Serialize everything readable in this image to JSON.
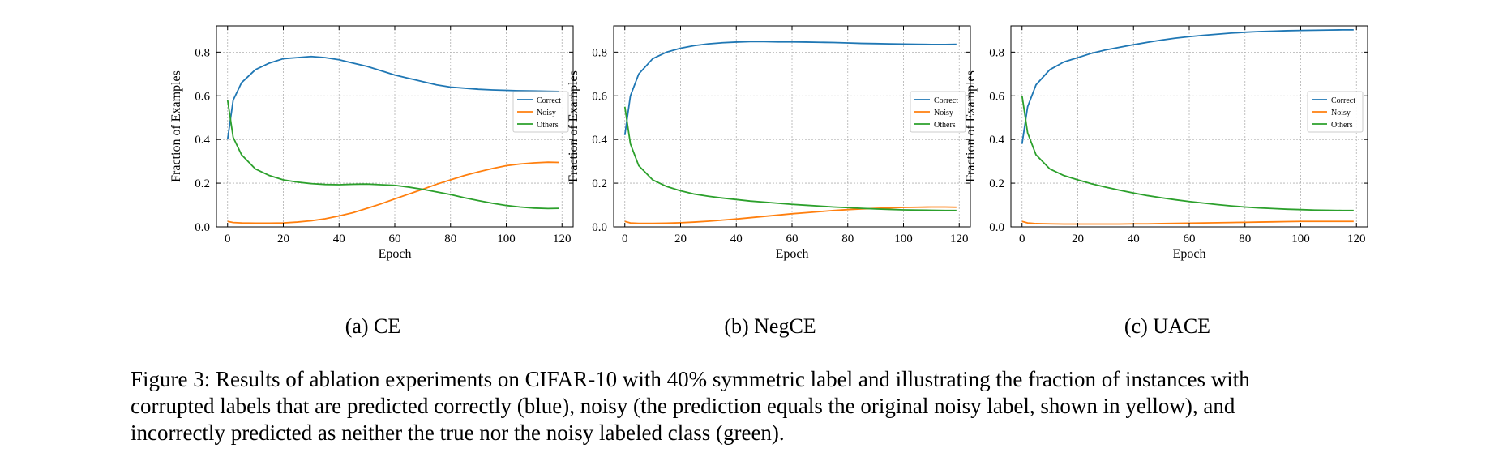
{
  "figure": {
    "caption_lines": [
      "Figure 3: Results of ablation experiments on CIFAR-10 with 40% symmetric label and illustrating the fraction of instances with",
      "corrupted labels that are predicted correctly (blue), noisy (the prediction equals the original noisy label, shown in yellow), and",
      "incorrectly predicted as neither the true nor the noisy labeled class (green)."
    ]
  },
  "chart_data": [
    {
      "type": "line",
      "subcaption": "(a) CE",
      "xlabel": "Epoch",
      "ylabel": "Fraction of Examples",
      "xlim": [
        -4,
        124
      ],
      "ylim": [
        0,
        0.92
      ],
      "xticks": [
        0,
        20,
        40,
        60,
        80,
        100,
        120
      ],
      "yticks": [
        0.0,
        0.2,
        0.4,
        0.6,
        0.8
      ],
      "grid": true,
      "legend": "center-right",
      "colors": {
        "Correct": "#1f77b4",
        "Noisy": "#ff7f0e",
        "Others": "#2ca02c"
      },
      "x": [
        0,
        2,
        5,
        10,
        15,
        20,
        25,
        30,
        35,
        40,
        45,
        50,
        55,
        60,
        65,
        70,
        75,
        80,
        85,
        90,
        95,
        100,
        105,
        110,
        115,
        119
      ],
      "series": [
        {
          "name": "Correct",
          "values": [
            0.4,
            0.58,
            0.66,
            0.72,
            0.75,
            0.77,
            0.775,
            0.78,
            0.775,
            0.765,
            0.75,
            0.735,
            0.715,
            0.695,
            0.68,
            0.665,
            0.65,
            0.64,
            0.635,
            0.63,
            0.627,
            0.625,
            0.623,
            0.622,
            0.621,
            0.62
          ]
        },
        {
          "name": "Noisy",
          "values": [
            0.025,
            0.02,
            0.018,
            0.017,
            0.017,
            0.018,
            0.022,
            0.028,
            0.037,
            0.05,
            0.065,
            0.085,
            0.105,
            0.128,
            0.15,
            0.172,
            0.195,
            0.215,
            0.235,
            0.252,
            0.267,
            0.28,
            0.288,
            0.293,
            0.296,
            0.295
          ]
        },
        {
          "name": "Others",
          "values": [
            0.58,
            0.41,
            0.33,
            0.265,
            0.235,
            0.215,
            0.205,
            0.198,
            0.194,
            0.193,
            0.195,
            0.196,
            0.193,
            0.19,
            0.182,
            0.172,
            0.16,
            0.148,
            0.133,
            0.12,
            0.108,
            0.098,
            0.091,
            0.086,
            0.084,
            0.085
          ]
        }
      ]
    },
    {
      "type": "line",
      "subcaption": "(b) NegCE",
      "xlabel": "Epoch",
      "ylabel": "Fraction of Examples",
      "xlim": [
        -4,
        124
      ],
      "ylim": [
        0,
        0.92
      ],
      "xticks": [
        0,
        20,
        40,
        60,
        80,
        100,
        120
      ],
      "yticks": [
        0.0,
        0.2,
        0.4,
        0.6,
        0.8
      ],
      "grid": true,
      "legend": "center-right",
      "colors": {
        "Correct": "#1f77b4",
        "Noisy": "#ff7f0e",
        "Others": "#2ca02c"
      },
      "x": [
        0,
        2,
        5,
        10,
        15,
        20,
        25,
        30,
        35,
        40,
        45,
        50,
        55,
        60,
        65,
        70,
        75,
        80,
        85,
        90,
        95,
        100,
        105,
        110,
        115,
        119
      ],
      "series": [
        {
          "name": "Correct",
          "values": [
            0.42,
            0.6,
            0.7,
            0.77,
            0.8,
            0.818,
            0.83,
            0.838,
            0.843,
            0.846,
            0.848,
            0.848,
            0.847,
            0.847,
            0.846,
            0.845,
            0.844,
            0.842,
            0.84,
            0.839,
            0.838,
            0.837,
            0.836,
            0.835,
            0.835,
            0.836
          ]
        },
        {
          "name": "Noisy",
          "values": [
            0.025,
            0.018,
            0.016,
            0.016,
            0.017,
            0.019,
            0.022,
            0.026,
            0.031,
            0.036,
            0.042,
            0.048,
            0.054,
            0.06,
            0.065,
            0.07,
            0.075,
            0.079,
            0.082,
            0.085,
            0.087,
            0.089,
            0.09,
            0.091,
            0.091,
            0.09
          ]
        },
        {
          "name": "Others",
          "values": [
            0.55,
            0.38,
            0.28,
            0.215,
            0.185,
            0.165,
            0.15,
            0.14,
            0.132,
            0.125,
            0.118,
            0.113,
            0.108,
            0.103,
            0.099,
            0.095,
            0.091,
            0.088,
            0.085,
            0.082,
            0.08,
            0.078,
            0.077,
            0.076,
            0.075,
            0.075
          ]
        }
      ]
    },
    {
      "type": "line",
      "subcaption": "(c) UACE",
      "xlabel": "Epoch",
      "ylabel": "Fraction of Examples",
      "xlim": [
        -4,
        124
      ],
      "ylim": [
        0,
        0.92
      ],
      "xticks": [
        0,
        20,
        40,
        60,
        80,
        100,
        120
      ],
      "yticks": [
        0.0,
        0.2,
        0.4,
        0.6,
        0.8
      ],
      "grid": true,
      "legend": "center-right",
      "colors": {
        "Correct": "#1f77b4",
        "Noisy": "#ff7f0e",
        "Others": "#2ca02c"
      },
      "x": [
        0,
        2,
        5,
        10,
        15,
        20,
        25,
        30,
        35,
        40,
        45,
        50,
        55,
        60,
        65,
        70,
        75,
        80,
        85,
        90,
        95,
        100,
        105,
        110,
        115,
        119
      ],
      "series": [
        {
          "name": "Correct",
          "values": [
            0.38,
            0.55,
            0.65,
            0.72,
            0.755,
            0.775,
            0.795,
            0.81,
            0.822,
            0.834,
            0.845,
            0.855,
            0.864,
            0.871,
            0.877,
            0.882,
            0.887,
            0.891,
            0.894,
            0.896,
            0.898,
            0.899,
            0.9,
            0.901,
            0.902,
            0.902
          ]
        },
        {
          "name": "Noisy",
          "values": [
            0.025,
            0.018,
            0.015,
            0.014,
            0.013,
            0.013,
            0.013,
            0.013,
            0.013,
            0.014,
            0.014,
            0.015,
            0.016,
            0.017,
            0.018,
            0.019,
            0.02,
            0.021,
            0.022,
            0.023,
            0.024,
            0.025,
            0.025,
            0.025,
            0.025,
            0.025
          ]
        },
        {
          "name": "Others",
          "values": [
            0.6,
            0.43,
            0.33,
            0.265,
            0.235,
            0.215,
            0.197,
            0.182,
            0.168,
            0.155,
            0.143,
            0.133,
            0.124,
            0.116,
            0.109,
            0.102,
            0.096,
            0.091,
            0.087,
            0.084,
            0.081,
            0.079,
            0.077,
            0.076,
            0.075,
            0.075
          ]
        }
      ]
    }
  ]
}
